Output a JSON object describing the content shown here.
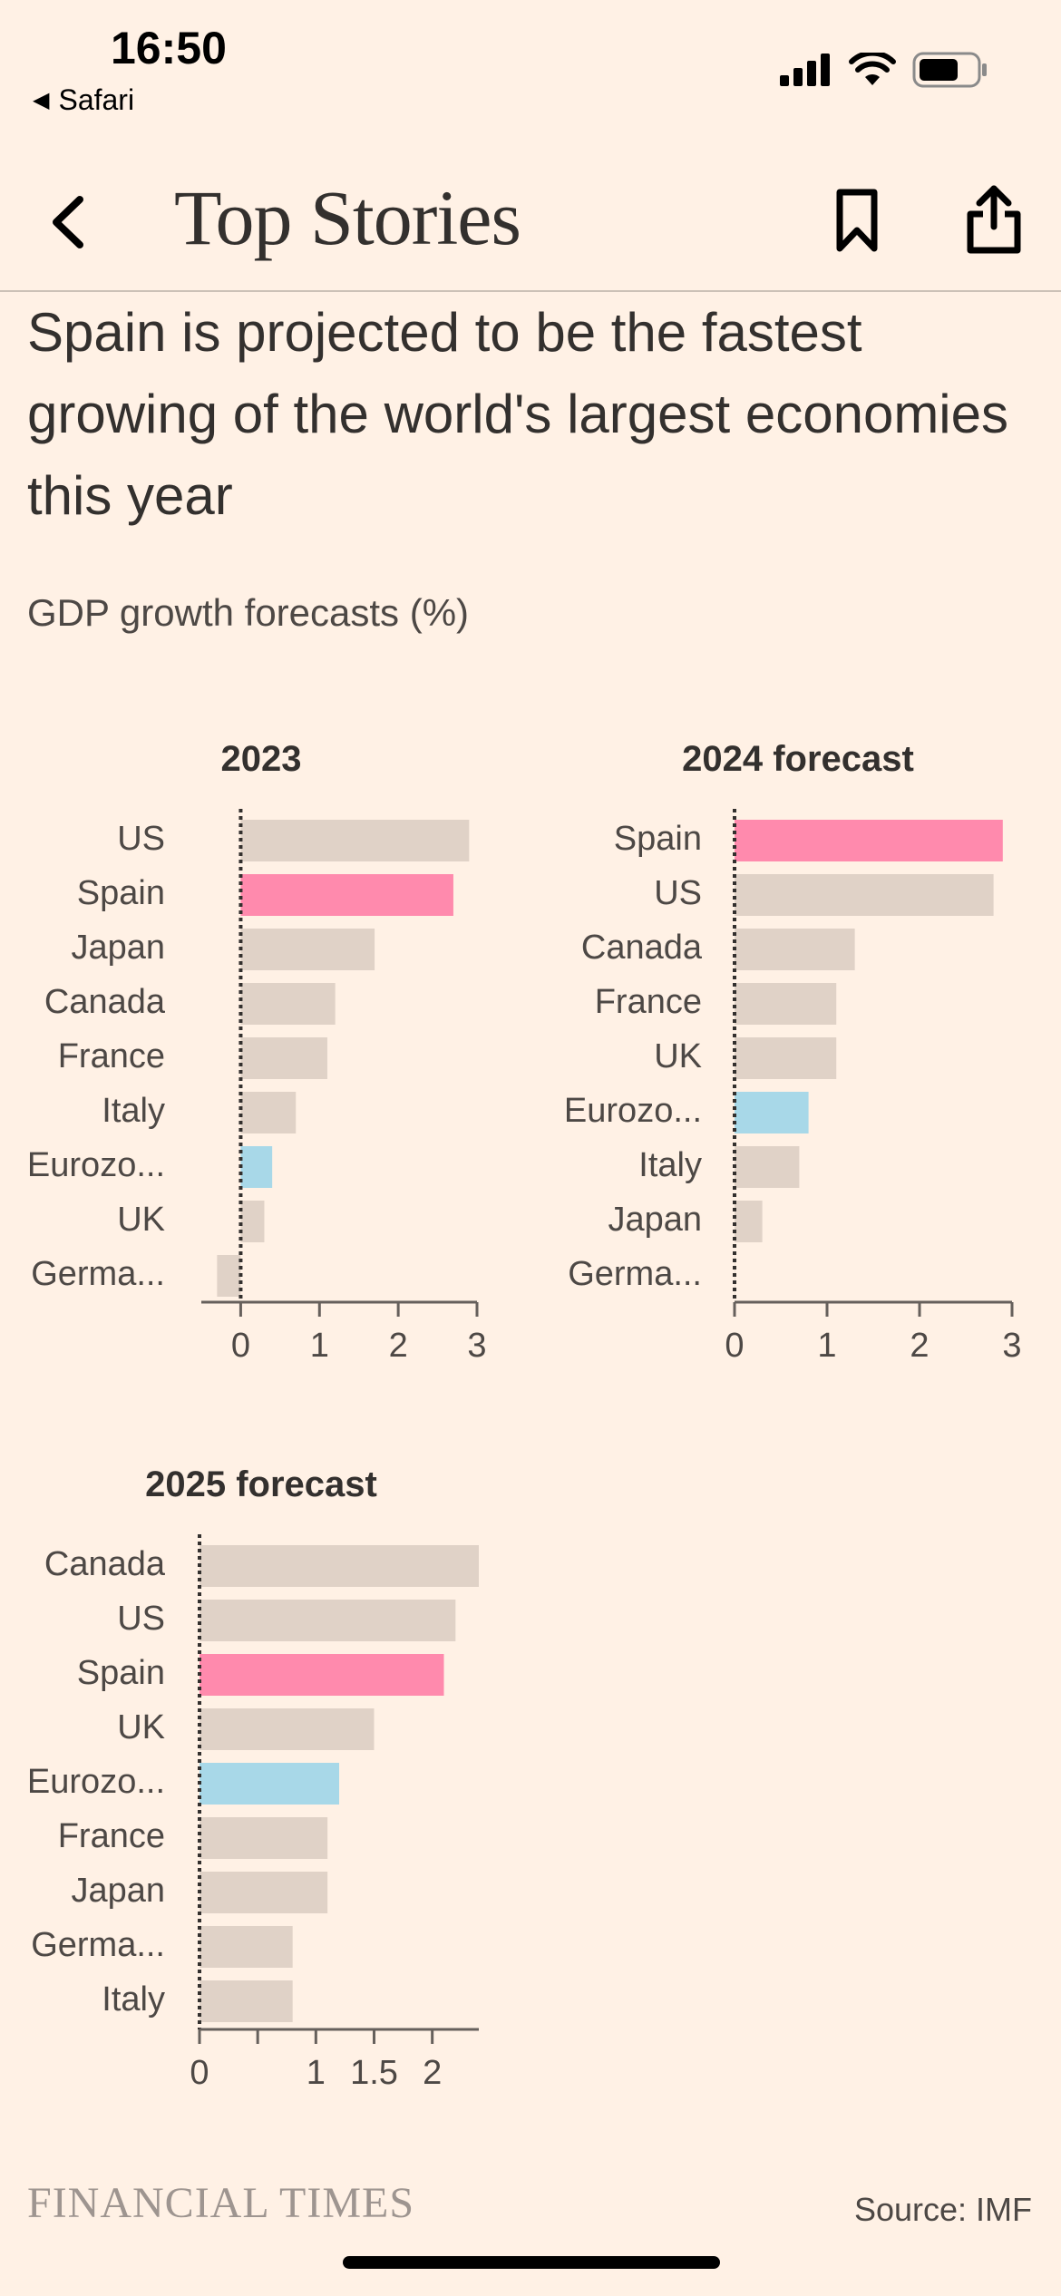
{
  "status_bar": {
    "time": "16:50",
    "back_app": "Safari"
  },
  "nav": {
    "title": "Top Stories"
  },
  "article": {
    "headline": "Spain is projected to be the fastest growing of the world's largest economies this year",
    "subtitle": "GDP growth forecasts (%)"
  },
  "colors": {
    "background": "#fff1e5",
    "highlight": "#ff8aad",
    "eurozone": "#a8d8e8",
    "default": "#e0d2c7"
  },
  "chart_data": [
    {
      "type": "bar",
      "orientation": "horizontal",
      "title": "2023",
      "categories": [
        "US",
        "Spain",
        "Japan",
        "Canada",
        "France",
        "Italy",
        "Eurozo...",
        "UK",
        "Germa..."
      ],
      "values": [
        2.9,
        2.7,
        1.7,
        1.2,
        1.1,
        0.7,
        0.4,
        0.3,
        -0.3
      ],
      "highlight": [
        "Spain",
        "Eurozo..."
      ],
      "xlim": [
        -0.5,
        3
      ],
      "xticks": [
        0,
        1,
        2,
        3
      ]
    },
    {
      "type": "bar",
      "orientation": "horizontal",
      "title": "2024 forecast",
      "categories": [
        "Spain",
        "US",
        "Canada",
        "France",
        "UK",
        "Eurozo...",
        "Italy",
        "Japan",
        "Germa..."
      ],
      "values": [
        2.9,
        2.8,
        1.3,
        1.1,
        1.1,
        0.8,
        0.7,
        0.3,
        0.0
      ],
      "highlight": [
        "Spain",
        "Eurozo..."
      ],
      "xlim": [
        0,
        3
      ],
      "xticks": [
        0,
        1,
        2,
        3
      ]
    },
    {
      "type": "bar",
      "orientation": "horizontal",
      "title": "2025 forecast",
      "categories": [
        "Canada",
        "US",
        "Spain",
        "UK",
        "Eurozo...",
        "France",
        "Japan",
        "Germa...",
        "Italy"
      ],
      "values": [
        2.4,
        2.2,
        2.1,
        1.5,
        1.2,
        1.1,
        1.1,
        0.8,
        0.8
      ],
      "highlight": [
        "Spain",
        "Eurozo..."
      ],
      "xlim": [
        0,
        2.4
      ],
      "xticks": [
        0,
        0.5,
        1,
        1.5,
        2
      ],
      "xtick_labels": [
        "0",
        "",
        "1",
        "1.5",
        "2"
      ]
    }
  ],
  "footer": {
    "brand": "FINANCIAL TIMES",
    "source": "Source: IMF"
  }
}
